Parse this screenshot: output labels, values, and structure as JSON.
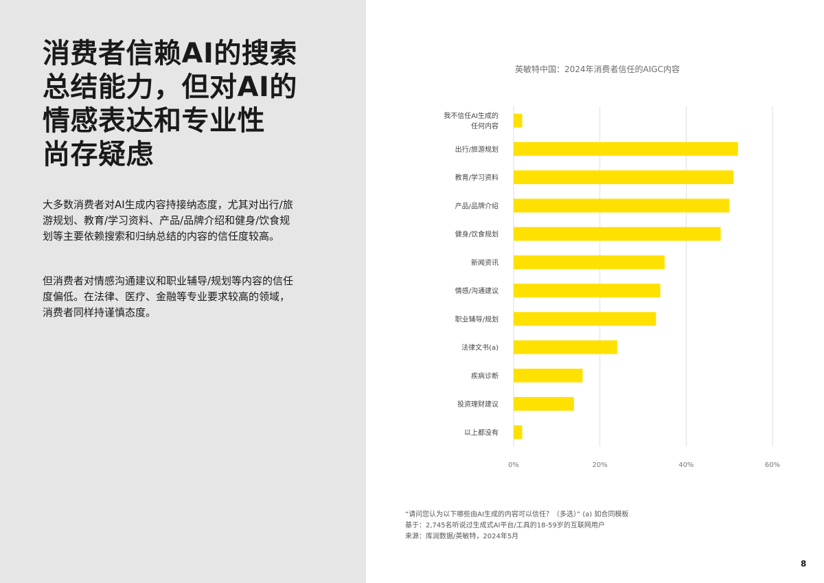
{
  "left": {
    "headline_lines": [
      "消费者信赖AI的搜索",
      "总结能力，但对AI的",
      "情感表达和专业性",
      "尚存疑虑"
    ],
    "paragraph_1": "大多数消费者对AI生成内容持接纳态度，尤其对出行/旅游规划、教育/学习资料、产品/品牌介绍和健身/饮食规划等主要依赖搜索和归纳总结的内容的信任度较高。",
    "paragraph_2": "但消费者对情感沟通建议和职业辅导/规划等内容的信任度偏低。在法律、医疗、金融等专业要求较高的领域，消费者同样持谨慎态度。",
    "background_color": "#e6e6e6"
  },
  "chart_data": {
    "type": "bar",
    "orientation": "horizontal",
    "title": "英敏特中国：2024年消费者信任的AIGC内容",
    "categories": [
      [
        "我不信任AI生成的",
        "任何内容"
      ],
      [
        "出行/旅游规划"
      ],
      [
        "教育/学习资料"
      ],
      [
        "产品/品牌介绍"
      ],
      [
        "健身/饮食规划"
      ],
      [
        "新闻资讯"
      ],
      [
        "情感/沟通建议"
      ],
      [
        "职业辅导/规划"
      ],
      [
        "法律文书(a)"
      ],
      [
        "疾病诊断"
      ],
      [
        "投资理财建议"
      ],
      [
        "以上都没有"
      ]
    ],
    "values": [
      2,
      52,
      51,
      50,
      48,
      35,
      34,
      33,
      24,
      16,
      14,
      2
    ],
    "xlim": [
      0,
      60
    ],
    "xticks": [
      0,
      20,
      40,
      60
    ],
    "xtick_labels": [
      "0%",
      "20%",
      "40%",
      "60%"
    ],
    "grid": true,
    "bar_color": "#ffe100",
    "grid_color": "#dddddd"
  },
  "footnote": {
    "line1": "“请问您认为以下哪些由AI生成的内容可以信任？（多选）” (a) 如合同模板",
    "line2": "基于：2,745名听说过生成式AI平台/工具的18-59岁的互联网用户",
    "line3": "来源：库润数据/英敏特，2024年5月"
  },
  "page_number": "8"
}
